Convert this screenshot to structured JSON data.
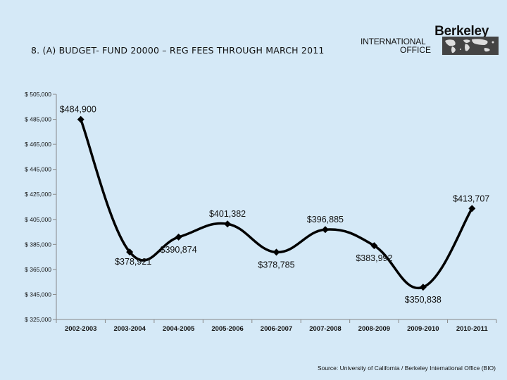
{
  "header": {
    "title": "8. (A) BUDGET- FUND 20000 – REG FEES THROUGH MARCH  2011"
  },
  "logo": {
    "line1": "Berkeley",
    "line2": "INTERNATIONAL",
    "line3": "OFFICE",
    "map_icon": "world-map-icon"
  },
  "colors": {
    "background": "#d5e9f7",
    "line": "#000000",
    "axis": "#888888"
  },
  "chart_data": {
    "type": "line",
    "title": "",
    "xlabel": "",
    "ylabel": "",
    "categories": [
      "2002-2003",
      "2003-2004",
      "2004-2005",
      "2005-2006",
      "2006-2007",
      "2007-2008",
      "2008-2009",
      "2009-2010",
      "2010-2011"
    ],
    "series": [
      {
        "values": [
          484900,
          378921,
          390874,
          401382,
          378785,
          396885,
          383992,
          350838,
          413707
        ],
        "labels": [
          "$484,900",
          "$378,921",
          "$390,874",
          "$401,382",
          "$378,785",
          "$396,885",
          "$383,992",
          "$350,838",
          "$413,707"
        ],
        "label_positions": [
          "above-right",
          "below-right",
          "below",
          "above",
          "below",
          "above",
          "below",
          "below",
          "above"
        ]
      }
    ],
    "ylim": [
      325000,
      505000
    ],
    "yticks": [
      325000,
      345000,
      365000,
      385000,
      405000,
      425000,
      445000,
      465000,
      485000,
      505000
    ],
    "ytick_labels": [
      "$ 325,000",
      "$ 345,000",
      "$ 365,000",
      "$ 385,000",
      "$ 405,000",
      "$ 425,000",
      "$ 445,000",
      "$ 465,000",
      "$ 485,000",
      "$ 505,000"
    ],
    "smooth": true,
    "marker": "diamond",
    "grid": false,
    "legend": "none"
  },
  "footer": {
    "source": "Source:  University of California / Berkeley International Office (BIO)"
  }
}
